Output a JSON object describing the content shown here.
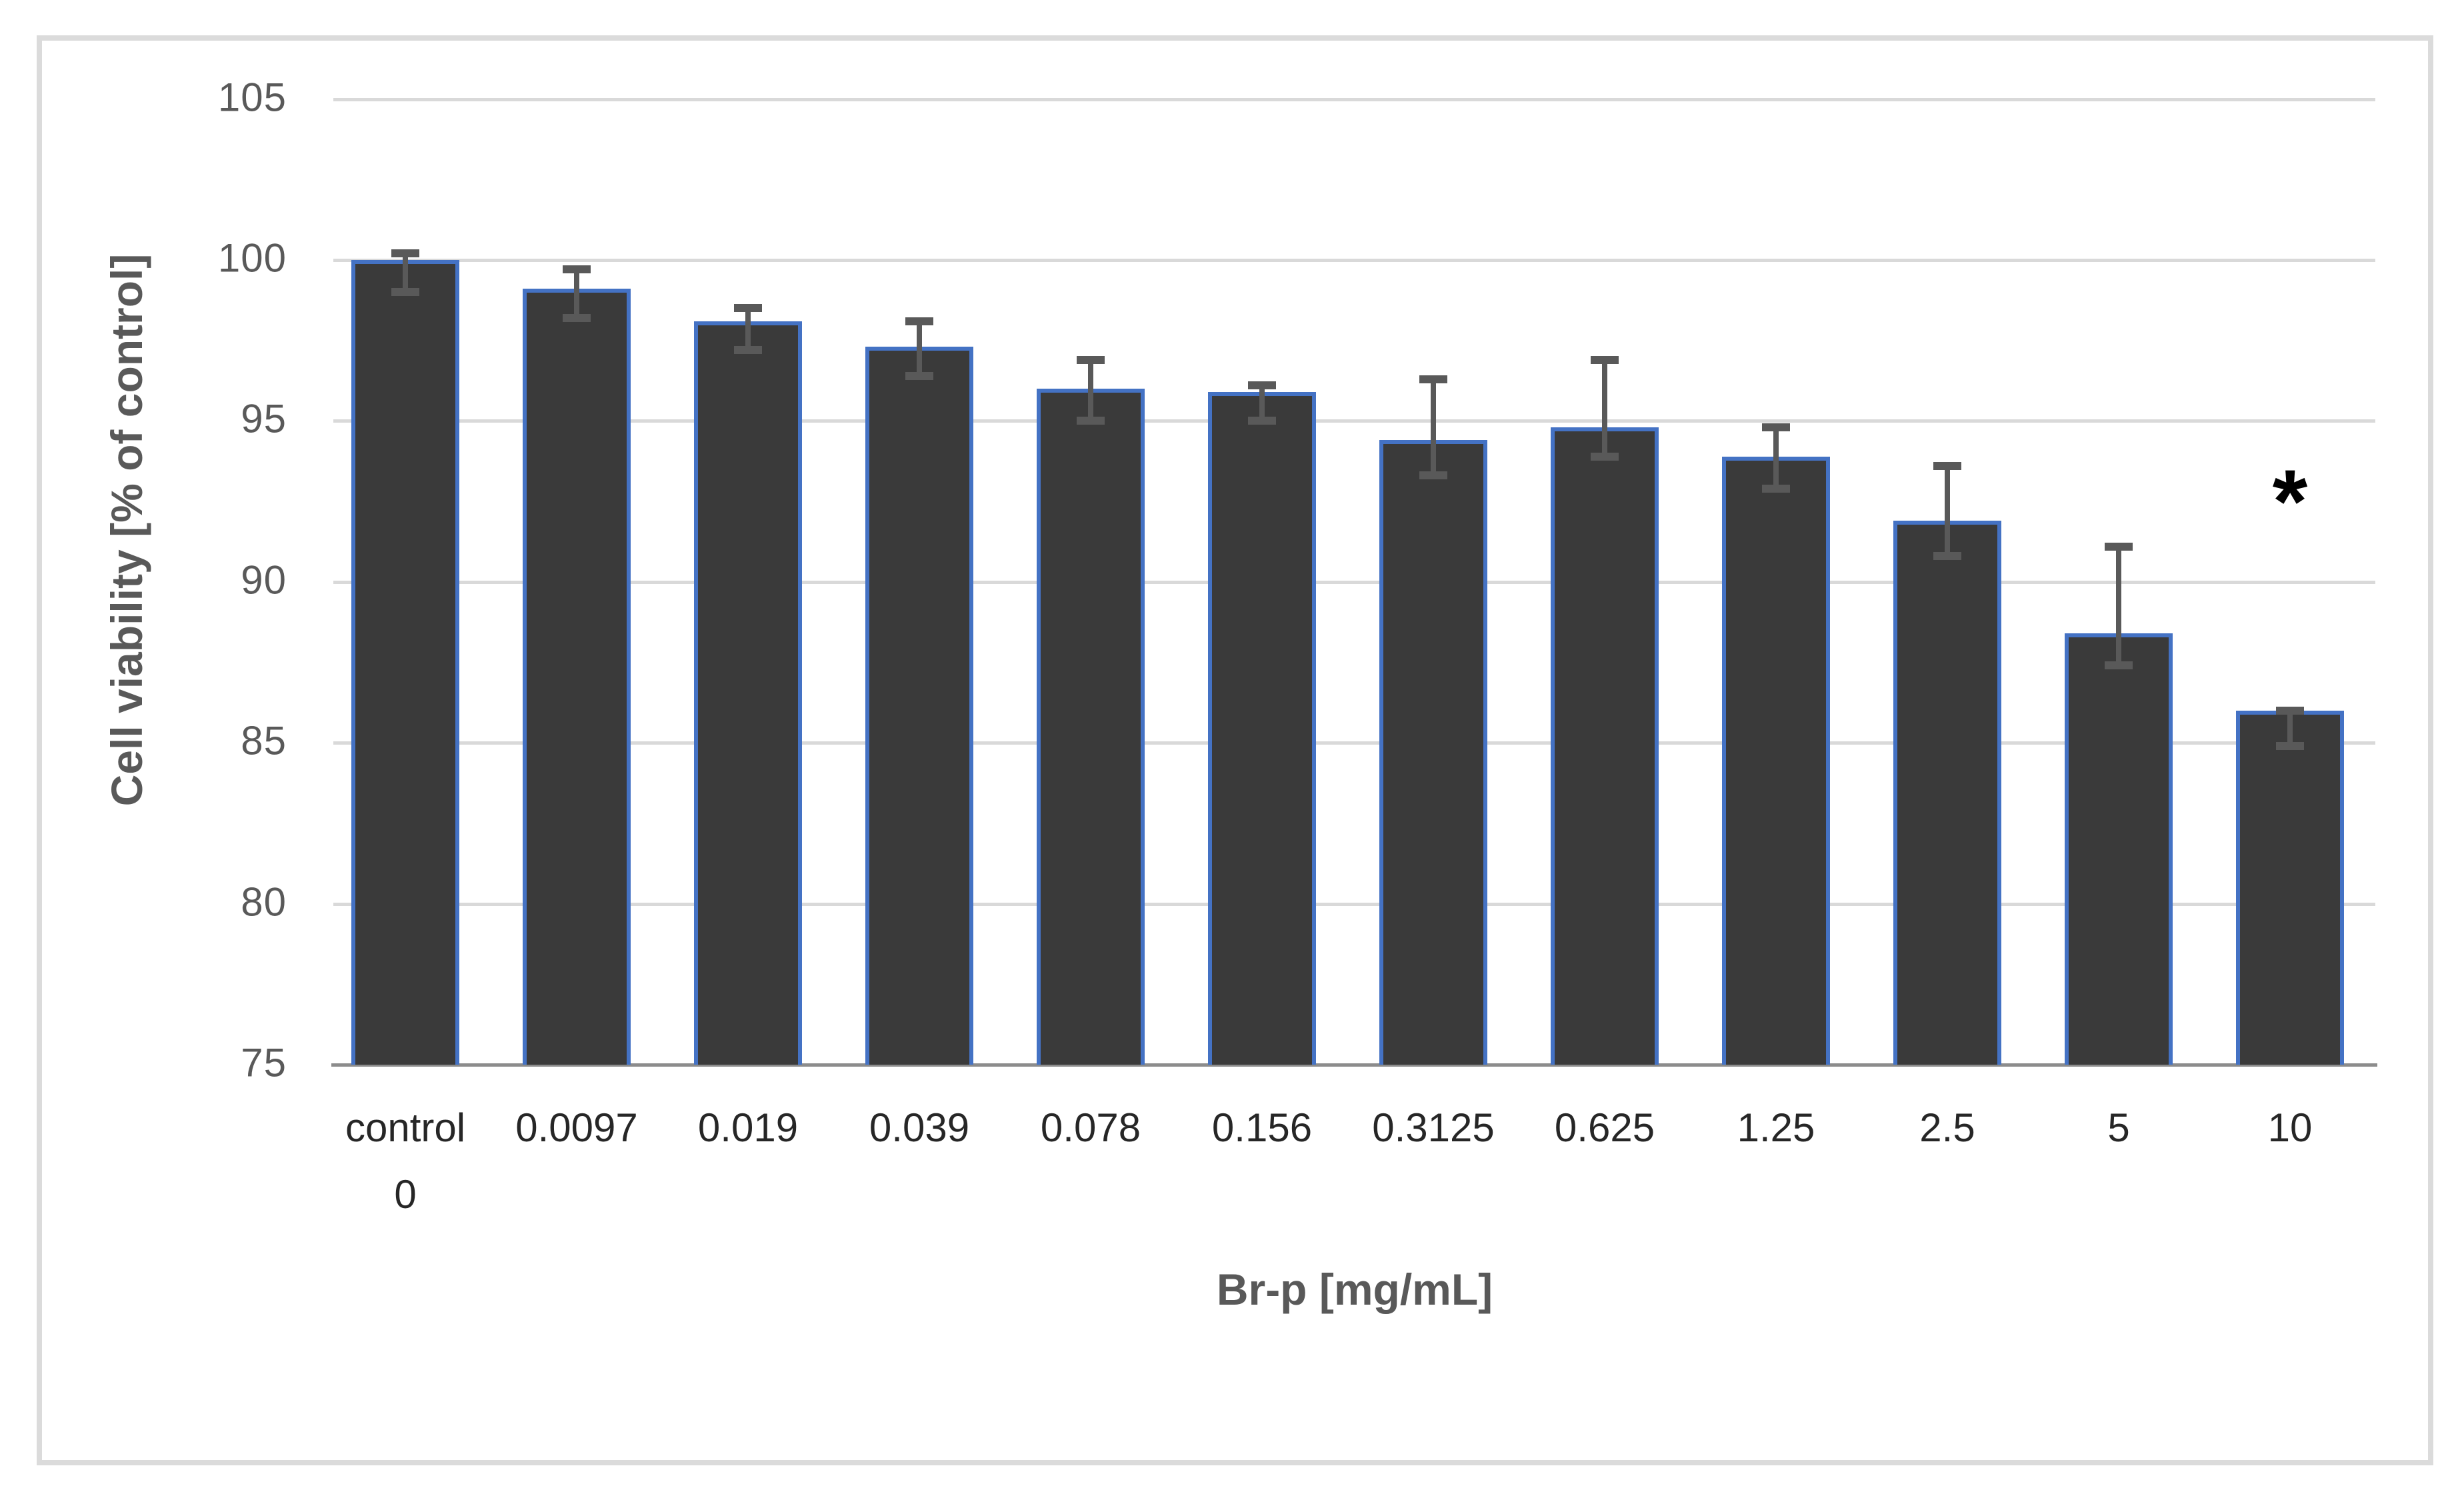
{
  "chart_data": {
    "type": "bar",
    "title": "",
    "xlabel": "Br-p [mg/mL]",
    "ylabel": "Cell viability [% of control]",
    "ylim": [
      75,
      105
    ],
    "yticks": [
      75,
      80,
      85,
      90,
      95,
      100,
      105
    ],
    "grid": true,
    "legend": false,
    "categories": [
      {
        "label": "control",
        "sublabel": "0"
      },
      {
        "label": "0.0097"
      },
      {
        "label": "0.019"
      },
      {
        "label": "0.039"
      },
      {
        "label": "0.078"
      },
      {
        "label": "0.156"
      },
      {
        "label": "0.3125"
      },
      {
        "label": "0.625"
      },
      {
        "label": "1.25"
      },
      {
        "label": "2.5"
      },
      {
        "label": "5"
      },
      {
        "label": "10"
      }
    ],
    "series": [
      {
        "name": "Cell viability",
        "values": [
          100.0,
          99.1,
          98.1,
          97.3,
          96.0,
          95.9,
          94.4,
          94.8,
          93.9,
          91.9,
          88.4,
          86.0
        ],
        "error_whisker_high": [
          100.2,
          99.7,
          98.5,
          98.1,
          96.9,
          96.1,
          96.3,
          96.9,
          94.8,
          93.6,
          91.1,
          86.0
        ],
        "error_whisker_low": [
          99.0,
          98.2,
          97.2,
          96.4,
          95.0,
          95.0,
          93.3,
          93.9,
          92.9,
          90.8,
          87.4,
          84.9
        ]
      }
    ],
    "annotations": [
      {
        "text": "*",
        "category_index": 11,
        "y_value": 92.5
      }
    ],
    "colors": {
      "bar_fill": "#3a3a3a",
      "bar_border": "#4472c4",
      "error_bar": "#595959",
      "gridline": "#d9d9d9",
      "axis_line": "#8c8c8c",
      "y_tick_label": "#595959",
      "x_tick_label": "#262626",
      "axis_title": "#595959",
      "annotation": "#000000",
      "frame_border": "#dbdbdb",
      "background": "#ffffff"
    }
  }
}
